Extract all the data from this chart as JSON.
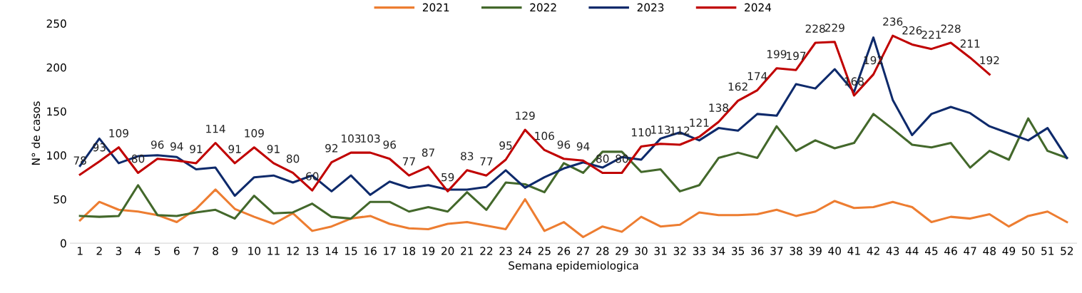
{
  "chart_data": {
    "type": "line",
    "xlabel": "Semana epidemiologica",
    "ylabel": "N° de casos",
    "categories": [
      "1",
      "2",
      "3",
      "4",
      "5",
      "6",
      "7",
      "8",
      "9",
      "10",
      "11",
      "12",
      "13",
      "14",
      "15",
      "16",
      "17",
      "18",
      "19",
      "20",
      "21",
      "22",
      "23",
      "24",
      "25",
      "26",
      "27",
      "28",
      "29",
      "30",
      "31",
      "32",
      "33",
      "34",
      "35",
      "36",
      "37",
      "38",
      "39",
      "40",
      "41",
      "42",
      "43",
      "44",
      "45",
      "46",
      "47",
      "48",
      "49",
      "50",
      "51",
      "52"
    ],
    "ylim": [
      0,
      250
    ],
    "yticks": [
      0,
      50,
      100,
      150,
      200,
      250
    ],
    "grid": false,
    "legend": "top",
    "marker": "none",
    "line_style": "solid",
    "series": [
      {
        "name": "2021",
        "color": "#ed7d31",
        "values": [
          26,
          47,
          38,
          36,
          32,
          24,
          39,
          61,
          39,
          30,
          22,
          34,
          14,
          19,
          28,
          31,
          22,
          17,
          16,
          22,
          24,
          20,
          16,
          50,
          14,
          24,
          7,
          19,
          13,
          30,
          19,
          21,
          35,
          32,
          32,
          33,
          38,
          31,
          36,
          48,
          40,
          41,
          47,
          41,
          24,
          30,
          28,
          33,
          19,
          31,
          36,
          24
        ]
      },
      {
        "name": "2022",
        "color": "#43682b",
        "values": [
          31,
          30,
          31,
          66,
          32,
          31,
          35,
          38,
          28,
          54,
          34,
          35,
          45,
          30,
          28,
          47,
          47,
          36,
          41,
          36,
          58,
          38,
          69,
          67,
          58,
          91,
          80,
          104,
          104,
          81,
          84,
          59,
          66,
          97,
          103,
          97,
          133,
          105,
          117,
          108,
          114,
          147,
          130,
          112,
          109,
          114,
          86,
          105,
          95,
          142,
          105,
          97
        ]
      },
      {
        "name": "2023",
        "color": "#0e2a6b",
        "values": [
          88,
          119,
          91,
          99,
          100,
          98,
          84,
          86,
          54,
          75,
          77,
          69,
          77,
          59,
          77,
          55,
          70,
          63,
          66,
          61,
          61,
          64,
          83,
          63,
          75,
          85,
          92,
          86,
          98,
          95,
          119,
          126,
          117,
          131,
          128,
          147,
          145,
          181,
          176,
          198,
          172,
          234,
          163,
          123,
          147,
          155,
          148,
          133,
          125,
          117,
          131,
          97
        ]
      },
      {
        "name": "2024",
        "color": "#c00000",
        "values": [
          78,
          93,
          109,
          80,
          96,
          94,
          91,
          114,
          91,
          109,
          91,
          80,
          60,
          92,
          103,
          103,
          96,
          77,
          87,
          59,
          83,
          77,
          95,
          129,
          106,
          96,
          94,
          80,
          80,
          110,
          113,
          112,
          121,
          138,
          162,
          174,
          199,
          197,
          228,
          229,
          168,
          192,
          236,
          226,
          221,
          228,
          211,
          192,
          null,
          null,
          null,
          null
        ],
        "value_labels": [
          "78",
          "93",
          "109",
          "80",
          "96",
          "94",
          "91",
          "114",
          "91",
          "109",
          "91",
          "80",
          "60",
          "92",
          "103",
          "103",
          "96",
          "77",
          "87",
          "59",
          "83",
          "77",
          "95",
          "129",
          "106",
          "96",
          "94",
          "80",
          "80",
          "110",
          "113",
          "112",
          "121",
          "138",
          "162",
          "174",
          "199",
          "197",
          "228",
          "229",
          "168",
          "192",
          "236",
          "226",
          "221",
          "228",
          "211",
          "192",
          null,
          null,
          null,
          null
        ]
      }
    ]
  }
}
